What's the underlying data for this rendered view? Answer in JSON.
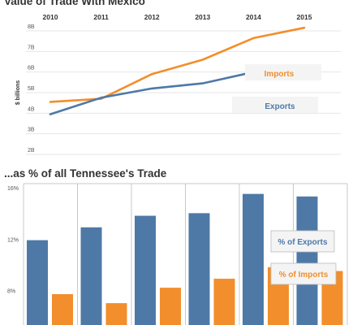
{
  "colors": {
    "exports": "#4e79a7",
    "imports": "#f28e2b",
    "grid": "#e6e6e6",
    "divider": "#c8c8c8"
  },
  "chart_data": [
    {
      "type": "line",
      "title": "Value of Trade With Mexico",
      "ylabel": "$ billions",
      "x": [
        "2010",
        "2011",
        "2012",
        "2013",
        "2014",
        "2015"
      ],
      "y_ticks": [
        "2B",
        "3B",
        "4B",
        "5B",
        "6B",
        "7B",
        "8B"
      ],
      "ylim": [
        2,
        8
      ],
      "grid": true,
      "series": [
        {
          "name": "Imports",
          "values": [
            4.55,
            4.7,
            5.9,
            6.6,
            7.65,
            8.15
          ]
        },
        {
          "name": "Exports",
          "values": [
            3.95,
            4.75,
            5.2,
            5.45,
            6.0,
            5.85
          ]
        }
      ],
      "legend": "right, next to each line"
    },
    {
      "type": "bar",
      "title": "...as % of all Tennessee's Trade",
      "categories": [
        "2010",
        "2011",
        "2012",
        "2013",
        "2014",
        "2015"
      ],
      "y_ticks": [
        "8%",
        "12%",
        "16%"
      ],
      "ylim": [
        5.2,
        16.2
      ],
      "series": [
        {
          "name": "% of Exports",
          "values": [
            11.8,
            12.8,
            13.7,
            13.9,
            15.4,
            15.2
          ]
        },
        {
          "name": "% of Imports",
          "values": [
            7.6,
            6.9,
            8.1,
            8.8,
            9.7,
            9.4
          ]
        }
      ],
      "legend": "right, boxed"
    }
  ]
}
